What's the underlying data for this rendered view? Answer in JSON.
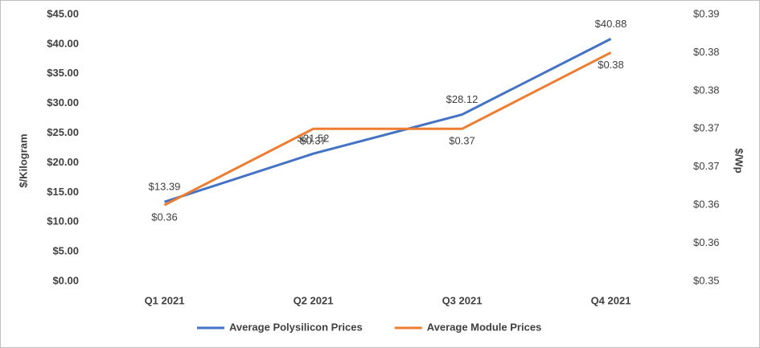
{
  "chart_data": {
    "type": "line",
    "categories": [
      "Q1 2021",
      "Q2 2021",
      "Q3 2021",
      "Q4 2021"
    ],
    "y_label": "$/Kilogram",
    "y2_label": "$/Wp",
    "ylim": [
      0,
      45
    ],
    "yticks": [
      {
        "value": 0,
        "label": "$0.00"
      },
      {
        "value": 5,
        "label": "$5.00"
      },
      {
        "value": 10,
        "label": "$10.00"
      },
      {
        "value": 15,
        "label": "$15.00"
      },
      {
        "value": 20,
        "label": "$20.00"
      },
      {
        "value": 25,
        "label": "$25.00"
      },
      {
        "value": 30,
        "label": "$30.00"
      },
      {
        "value": 35,
        "label": "$35.00"
      },
      {
        "value": 40,
        "label": "$40.00"
      },
      {
        "value": 45,
        "label": "$45.00"
      }
    ],
    "y2lim": [
      0.35,
      0.385
    ],
    "y2ticks": [
      {
        "value": 0.35,
        "label": "$0.35"
      },
      {
        "value": 0.355,
        "label": "$0.36"
      },
      {
        "value": 0.36,
        "label": "$0.36"
      },
      {
        "value": 0.365,
        "label": "$0.37"
      },
      {
        "value": 0.37,
        "label": "$0.37"
      },
      {
        "value": 0.375,
        "label": "$0.38"
      },
      {
        "value": 0.38,
        "label": "$0.38"
      },
      {
        "value": 0.385,
        "label": "$0.39"
      }
    ],
    "legend": "bottom",
    "series": [
      {
        "name": "Average Polysilicon Prices",
        "color": "#4472c4",
        "values": [
          13.39,
          21.52,
          28.12,
          40.88
        ],
        "value_labels": [
          "$13.39",
          "$21.52",
          "$28.12",
          "$40.88"
        ]
      },
      {
        "name": "Average Module Prices",
        "color": "#ed7d31",
        "axis": "y2",
        "values": [
          0.36,
          0.37,
          0.37,
          0.38
        ],
        "value_labels": [
          "$0.36",
          "$0.37",
          "$0.37",
          "$0.38"
        ]
      }
    ]
  }
}
